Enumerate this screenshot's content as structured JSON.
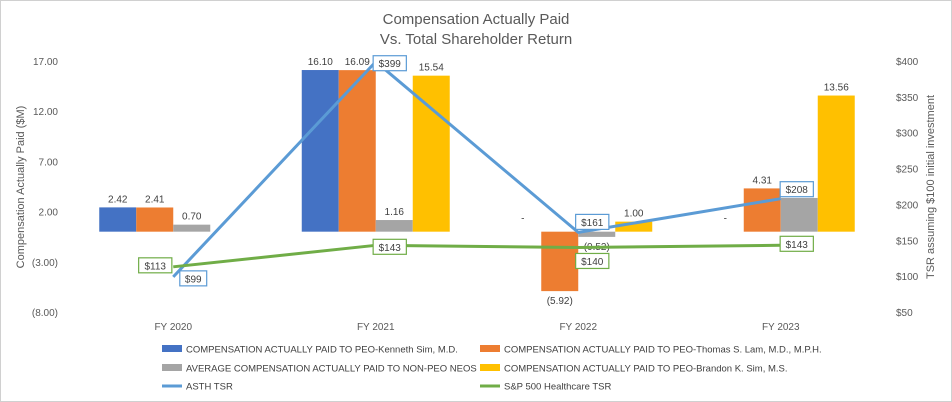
{
  "chart_data": {
    "type": "bar",
    "title": "Compensation Actually Paid",
    "subtitle": "Vs. Total Shareholder Return",
    "categories": [
      "FY 2020",
      "FY 2021",
      "FY 2022",
      "FY 2023"
    ],
    "ylabel": "Compensation Actually Paid ($M)",
    "y2label": "TSR assuming $100 initial investment",
    "ylim": [
      -8,
      17
    ],
    "y2lim": [
      50,
      400
    ],
    "y_ticks": [
      "17.00",
      "12.00",
      "7.00",
      "2.00",
      "(3.00)",
      "(8.00)"
    ],
    "y2_ticks": [
      "$400",
      "$350",
      "$300",
      "$250",
      "$200",
      "$150",
      "$100",
      "$50"
    ],
    "series": [
      {
        "name": "COMPENSATION ACTUALLY PAID TO PEO-Kenneth Sim, M.D.",
        "color": "#4472C4",
        "values": [
          2.42,
          16.1,
          null,
          null
        ],
        "labels": [
          "2.42",
          "16.10",
          "-",
          "-"
        ]
      },
      {
        "name": "COMPENSATION ACTUALLY PAID TO PEO-Thomas S. Lam, M.D., M.P.H.",
        "color": "#ED7D31",
        "values": [
          2.41,
          16.09,
          -5.92,
          4.31
        ],
        "labels": [
          "2.41",
          "16.09",
          "(5.92)",
          "4.31"
        ]
      },
      {
        "name": "AVERAGE COMPENSATION ACTUALLY PAID TO NON-PEO NEOS",
        "color": "#A5A5A5",
        "values": [
          0.7,
          1.16,
          -0.52,
          3.36
        ],
        "labels": [
          "0.70",
          "1.16",
          "(0.52)",
          "3.36"
        ]
      },
      {
        "name": "COMPENSATION ACTUALLY PAID TO PEO-Brandon K. Sim, M.S.",
        "color": "#FFC000",
        "values": [
          null,
          15.54,
          1.0,
          13.56
        ],
        "labels": [
          "-",
          "15.54",
          "1.00",
          "13.56"
        ]
      }
    ],
    "lines": [
      {
        "name": "ASTH TSR",
        "color": "#5B9BD5",
        "values": [
          99,
          399,
          161,
          208
        ],
        "labels": [
          "$99",
          "$399",
          "$161",
          "$208"
        ]
      },
      {
        "name": "S&P 500 Healthcare TSR",
        "color": "#70AD47",
        "values": [
          113,
          143,
          140,
          143
        ],
        "labels": [
          "$113",
          "$143",
          "$140",
          "$143"
        ]
      }
    ],
    "legend_position": "bottom",
    "grid": false
  }
}
